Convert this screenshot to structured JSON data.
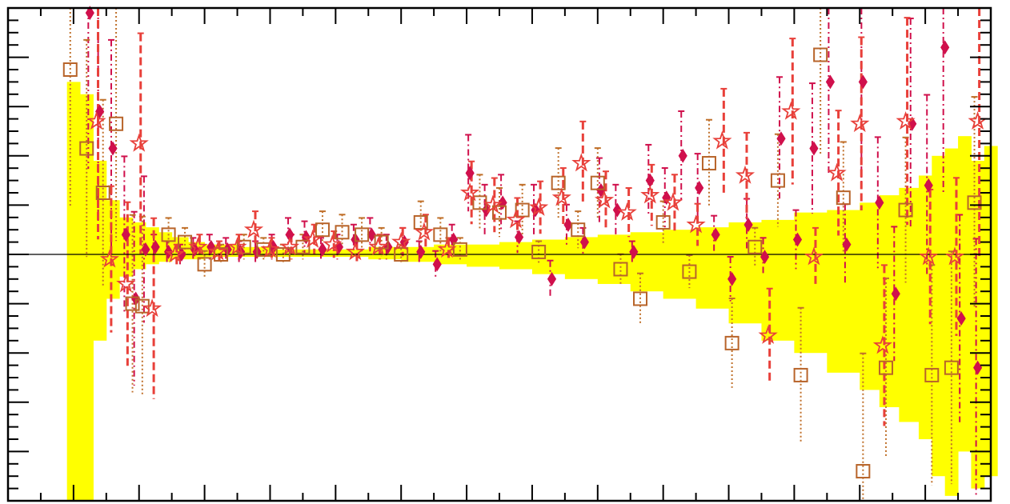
{
  "colors": {
    "band": "#ffff00",
    "axis": "#000000",
    "diamond": "#d0104c",
    "square": "#b8642a",
    "star": "#e8403a",
    "dashed_line": "#e8403a",
    "dotted_line": "#c0702a"
  },
  "chart_data": {
    "type": "scatter",
    "title": "",
    "xlabel": "",
    "ylabel": "",
    "x_range": [
      0,
      30
    ],
    "y_range": [
      -1.0,
      1.0
    ],
    "reference_line": 0,
    "grid": false,
    "legend": "none",
    "band": {
      "x": [
        1.8,
        2.2,
        2.6,
        3.0,
        3.4,
        3.8,
        4.2,
        4.6,
        5.0,
        5.5,
        6.0,
        7.0,
        8.0,
        9.0,
        10.0,
        11.0,
        12.0,
        13.0,
        14.0,
        15.0,
        16.0,
        17.0,
        18.0,
        19.0,
        20.0,
        21.0,
        22.0,
        23.0,
        24.0,
        25.0,
        26.0,
        26.6,
        27.2,
        27.8,
        28.2,
        28.6,
        29.0,
        29.4,
        29.8,
        30.2
      ],
      "hi": [
        0.7,
        0.65,
        0.38,
        0.22,
        0.15,
        0.13,
        0.11,
        0.09,
        0.07,
        0.05,
        0.04,
        0.03,
        0.02,
        0.02,
        0.02,
        0.03,
        0.03,
        0.04,
        0.04,
        0.05,
        0.06,
        0.07,
        0.08,
        0.09,
        0.1,
        0.11,
        0.13,
        0.14,
        0.17,
        0.18,
        0.21,
        0.24,
        0.27,
        0.32,
        0.4,
        0.43,
        0.48,
        0.38,
        0.44,
        0.5
      ],
      "lo": [
        -1.0,
        -1.0,
        -0.35,
        -0.18,
        -0.09,
        -0.06,
        -0.04,
        -0.03,
        -0.02,
        -0.02,
        -0.01,
        -0.01,
        -0.01,
        -0.01,
        -0.01,
        -0.02,
        -0.03,
        -0.04,
        -0.05,
        -0.06,
        -0.08,
        -0.1,
        -0.12,
        -0.15,
        -0.18,
        -0.22,
        -0.28,
        -0.35,
        -0.4,
        -0.48,
        -0.55,
        -0.62,
        -0.68,
        -0.75,
        -0.9,
        -0.98,
        -0.8,
        -0.95,
        -0.9,
        -0.95
      ]
    },
    "series": [
      {
        "marker": "diamond",
        "x": [
          2.5,
          2.8,
          3.2,
          3.6,
          3.9,
          4.2,
          4.5,
          4.9,
          5.3,
          5.7,
          6.2,
          6.7,
          7.1,
          7.6,
          8.1,
          8.6,
          9.1,
          9.6,
          10.1,
          10.6,
          11.1,
          11.6,
          12.1,
          12.6,
          13.1,
          13.6,
          14.1,
          14.6,
          15.1,
          15.6,
          16.1,
          16.6,
          17.1,
          17.6,
          18.1,
          18.6,
          19.1,
          19.6,
          20.1,
          20.6,
          21.1,
          21.6,
          22.1,
          22.6,
          23.1,
          23.6,
          24.1,
          24.6,
          25.1,
          25.6,
          26.1,
          26.6,
          27.1,
          27.6,
          28.1,
          28.6,
          29.1,
          29.6
        ],
        "y": [
          0.98,
          0.58,
          0.43,
          0.08,
          -0.18,
          0.02,
          0.03,
          0.01,
          0.0,
          0.02,
          0.03,
          0.02,
          0.01,
          0.01,
          0.03,
          0.08,
          0.07,
          0.02,
          0.03,
          0.06,
          0.08,
          0.03,
          0.05,
          0.01,
          -0.04,
          0.06,
          0.33,
          0.18,
          0.21,
          0.07,
          0.18,
          -0.1,
          0.12,
          0.05,
          0.26,
          0.18,
          0.01,
          0.3,
          0.23,
          0.4,
          0.27,
          0.08,
          -0.1,
          0.12,
          -0.01,
          0.47,
          0.06,
          0.43,
          0.7,
          0.04,
          0.7,
          0.21,
          -0.16,
          0.53,
          0.28,
          0.84,
          -0.26,
          -0.46
        ]
      },
      {
        "marker": "square",
        "x": [
          1.9,
          2.4,
          2.9,
          3.3,
          3.8,
          4.1,
          4.9,
          5.4,
          6.0,
          6.5,
          7.2,
          7.8,
          8.4,
          9.0,
          9.6,
          10.2,
          10.8,
          11.4,
          12.0,
          12.6,
          13.2,
          13.8,
          14.4,
          15.0,
          15.7,
          16.2,
          16.8,
          17.4,
          18.0,
          18.7,
          19.3,
          20.0,
          20.8,
          21.4,
          22.1,
          22.8,
          23.5,
          24.2,
          24.8,
          25.5,
          26.1,
          26.8,
          27.4,
          28.2,
          28.8,
          29.5
        ],
        "y": [
          0.75,
          0.43,
          0.25,
          0.53,
          -0.2,
          -0.21,
          0.08,
          0.05,
          -0.04,
          0.0,
          0.03,
          0.02,
          0.0,
          0.03,
          0.1,
          0.09,
          0.08,
          0.05,
          0.0,
          0.13,
          0.08,
          0.02,
          0.21,
          0.17,
          0.18,
          0.01,
          0.29,
          0.1,
          0.29,
          -0.06,
          -0.18,
          0.13,
          -0.07,
          0.37,
          -0.36,
          0.03,
          0.3,
          -0.49,
          0.81,
          0.23,
          -0.88,
          -0.46,
          0.18,
          -0.49,
          -0.46,
          0.21
        ]
      },
      {
        "marker": "star",
        "x": [
          2.7,
          3.1,
          3.6,
          4.0,
          4.4,
          5.1,
          5.8,
          6.4,
          7.0,
          7.5,
          8.0,
          8.6,
          9.3,
          9.9,
          10.6,
          11.3,
          12.0,
          12.7,
          13.4,
          14.1,
          14.8,
          15.5,
          16.2,
          16.9,
          17.5,
          18.2,
          18.9,
          19.6,
          20.3,
          21.0,
          21.8,
          22.5,
          23.2,
          23.9,
          24.6,
          25.3,
          26.0,
          26.7,
          27.4,
          28.1,
          28.9,
          29.6
        ],
        "y": [
          0.54,
          -0.02,
          -0.12,
          0.45,
          -0.22,
          0.0,
          0.03,
          0.01,
          0.03,
          0.1,
          0.02,
          0.03,
          0.06,
          0.04,
          0.01,
          0.03,
          0.05,
          0.09,
          0.02,
          0.25,
          0.2,
          0.14,
          0.19,
          0.23,
          0.37,
          0.22,
          0.17,
          0.24,
          0.21,
          0.12,
          0.46,
          0.32,
          -0.33,
          0.58,
          -0.01,
          0.33,
          0.53,
          -0.37,
          0.54,
          -0.01,
          -0.01,
          0.54
        ]
      }
    ]
  }
}
